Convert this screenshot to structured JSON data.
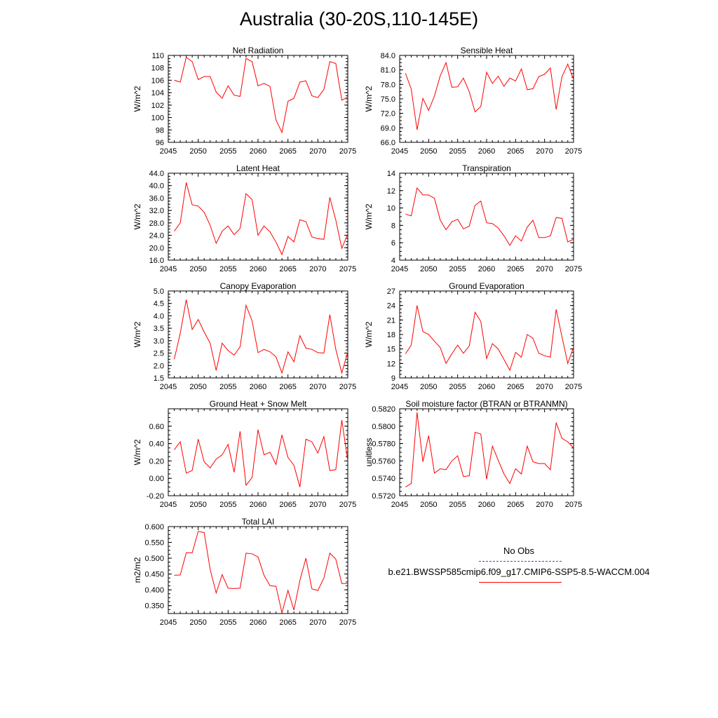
{
  "title": "Australia (30-20S,110-145E)",
  "colors": {
    "model": "#ff0000",
    "obs": "#4b4bb4",
    "frame": "#000000"
  },
  "legend": [
    {
      "label": "No Obs",
      "style": "dashed",
      "color": "#4b4bb4"
    },
    {
      "label": "b.e21.BWSSP585cmip6.f09_g17.CMIP6-SSP5-8.5-WACCM.004",
      "style": "solid",
      "color": "#ff0000"
    }
  ],
  "chart_data": [
    {
      "type": "line",
      "title": "Net Radiation",
      "ylabel": "W/m^2",
      "xlim": [
        2045,
        2075
      ],
      "ylim": [
        96,
        110
      ],
      "xticks": [
        2045,
        2050,
        2055,
        2060,
        2065,
        2070,
        2075
      ],
      "yticks": [
        "96",
        "98",
        "100",
        "102",
        "104",
        "106",
        "108",
        "110"
      ],
      "x": [
        2046,
        2047,
        2048,
        2049,
        2050,
        2051,
        2052,
        2053,
        2054,
        2055,
        2056,
        2057,
        2058,
        2059,
        2060,
        2061,
        2062,
        2063,
        2064,
        2065,
        2066,
        2067,
        2068,
        2069,
        2070,
        2071,
        2072,
        2073,
        2074,
        2075
      ],
      "series": [
        {
          "values": [
            106.0,
            105.7,
            109.7,
            109.0,
            106.1,
            106.6,
            106.6,
            104.1,
            103.1,
            105.1,
            103.6,
            103.4,
            109.5,
            109.0,
            105.1,
            105.5,
            105.0,
            99.6,
            97.6,
            102.6,
            103.1,
            105.7,
            105.9,
            103.5,
            103.2,
            104.5,
            109.0,
            108.7,
            102.8,
            103.3
          ]
        }
      ]
    },
    {
      "type": "line",
      "title": "Sensible Heat",
      "ylabel": "W/m^2",
      "xlim": [
        2045,
        2075
      ],
      "ylim": [
        66,
        84
      ],
      "xticks": [
        2045,
        2050,
        2055,
        2060,
        2065,
        2070,
        2075
      ],
      "yticks": [
        "66.0",
        "69.0",
        "72.0",
        "75.0",
        "78.0",
        "81.0",
        "84.0"
      ],
      "x": [
        2046,
        2047,
        2048,
        2049,
        2050,
        2051,
        2052,
        2053,
        2054,
        2055,
        2056,
        2057,
        2058,
        2059,
        2060,
        2061,
        2062,
        2063,
        2064,
        2065,
        2066,
        2067,
        2068,
        2069,
        2070,
        2071,
        2072,
        2073,
        2074,
        2075
      ],
      "series": [
        {
          "values": [
            80.3,
            77.0,
            68.6,
            75.1,
            72.6,
            75.6,
            79.8,
            82.5,
            77.4,
            77.5,
            79.3,
            76.5,
            72.3,
            73.4,
            80.5,
            78.2,
            79.7,
            77.6,
            79.3,
            78.7,
            81.2,
            76.9,
            77.1,
            79.6,
            80.1,
            81.4,
            72.8,
            79.6,
            82.2,
            79.0
          ]
        }
      ]
    },
    {
      "type": "line",
      "title": "Latent Heat",
      "ylabel": "W/m^2",
      "xlim": [
        2045,
        2075
      ],
      "ylim": [
        16,
        44
      ],
      "xticks": [
        2045,
        2050,
        2055,
        2060,
        2065,
        2070,
        2075
      ],
      "yticks": [
        "16.0",
        "20.0",
        "24.0",
        "28.0",
        "32.0",
        "36.0",
        "40.0",
        "44.0"
      ],
      "x": [
        2046,
        2047,
        2048,
        2049,
        2050,
        2051,
        2052,
        2053,
        2054,
        2055,
        2056,
        2057,
        2058,
        2059,
        2060,
        2061,
        2062,
        2063,
        2064,
        2065,
        2066,
        2067,
        2068,
        2069,
        2070,
        2071,
        2072,
        2073,
        2074,
        2075
      ],
      "series": [
        {
          "values": [
            25.3,
            28.0,
            41.0,
            33.8,
            33.4,
            31.4,
            27.2,
            21.4,
            25.3,
            27.0,
            24.2,
            26.2,
            37.4,
            35.5,
            24.0,
            27.0,
            25.1,
            21.8,
            17.8,
            23.6,
            21.9,
            29.0,
            28.4,
            23.5,
            22.9,
            22.7,
            36.2,
            28.9,
            19.8,
            24.5
          ]
        }
      ]
    },
    {
      "type": "line",
      "title": "Transpiration",
      "ylabel": "W/m^2",
      "xlim": [
        2045,
        2075
      ],
      "ylim": [
        4,
        14
      ],
      "xticks": [
        2045,
        2050,
        2055,
        2060,
        2065,
        2070,
        2075
      ],
      "yticks": [
        "4",
        "6",
        "8",
        "10",
        "12",
        "14"
      ],
      "x": [
        2046,
        2047,
        2048,
        2049,
        2050,
        2051,
        2052,
        2053,
        2054,
        2055,
        2056,
        2057,
        2058,
        2059,
        2060,
        2061,
        2062,
        2063,
        2064,
        2065,
        2066,
        2067,
        2068,
        2069,
        2070,
        2071,
        2072,
        2073,
        2074,
        2075
      ],
      "series": [
        {
          "values": [
            9.3,
            9.1,
            12.3,
            11.5,
            11.5,
            11.1,
            8.6,
            7.5,
            8.4,
            8.7,
            7.6,
            7.9,
            10.3,
            10.8,
            8.3,
            8.2,
            7.7,
            6.8,
            5.7,
            6.8,
            6.2,
            7.8,
            8.6,
            6.6,
            6.6,
            6.8,
            8.9,
            8.8,
            6.1,
            6.4
          ]
        }
      ]
    },
    {
      "type": "line",
      "title": "Canopy Evaporation",
      "ylabel": "W/m^2",
      "xlim": [
        2045,
        2075
      ],
      "ylim": [
        1.5,
        5.0
      ],
      "xticks": [
        2045,
        2050,
        2055,
        2060,
        2065,
        2070,
        2075
      ],
      "yticks": [
        "1.5",
        "2.0",
        "2.5",
        "3.0",
        "3.5",
        "4.0",
        "4.5",
        "5.0"
      ],
      "x": [
        2046,
        2047,
        2048,
        2049,
        2050,
        2051,
        2052,
        2053,
        2054,
        2055,
        2056,
        2057,
        2058,
        2059,
        2060,
        2061,
        2062,
        2063,
        2064,
        2065,
        2066,
        2067,
        2068,
        2069,
        2070,
        2071,
        2072,
        2073,
        2074,
        2075
      ],
      "series": [
        {
          "values": [
            2.25,
            3.3,
            4.65,
            3.45,
            3.85,
            3.35,
            2.9,
            1.8,
            2.9,
            2.6,
            2.42,
            2.75,
            4.42,
            3.8,
            2.52,
            2.65,
            2.55,
            2.35,
            1.7,
            2.55,
            2.15,
            3.2,
            2.7,
            2.65,
            2.52,
            2.5,
            4.05,
            2.65,
            1.7,
            2.55
          ]
        }
      ]
    },
    {
      "type": "line",
      "title": "Ground Evaporation",
      "ylabel": "W/m^2",
      "xlim": [
        2045,
        2075
      ],
      "ylim": [
        9,
        27
      ],
      "xticks": [
        2045,
        2050,
        2055,
        2060,
        2065,
        2070,
        2075
      ],
      "yticks": [
        "9",
        "12",
        "15",
        "18",
        "21",
        "24",
        "27"
      ],
      "x": [
        2046,
        2047,
        2048,
        2049,
        2050,
        2051,
        2052,
        2053,
        2054,
        2055,
        2056,
        2057,
        2058,
        2059,
        2060,
        2061,
        2062,
        2063,
        2064,
        2065,
        2066,
        2067,
        2068,
        2069,
        2070,
        2071,
        2072,
        2073,
        2074,
        2075
      ],
      "series": [
        {
          "values": [
            14.0,
            15.8,
            24.0,
            18.6,
            18.0,
            16.6,
            15.3,
            12.0,
            14.0,
            15.8,
            14.1,
            15.6,
            22.6,
            20.7,
            13.0,
            16.1,
            15.0,
            12.8,
            10.6,
            14.3,
            13.3,
            18.0,
            17.2,
            14.1,
            13.6,
            13.3,
            23.2,
            17.5,
            12.0,
            15.4
          ]
        }
      ]
    },
    {
      "type": "line",
      "title": "Ground Heat + Snow Melt",
      "ylabel": "W/m^2",
      "xlim": [
        2045,
        2075
      ],
      "ylim": [
        -0.2,
        0.8
      ],
      "xticks": [
        2045,
        2050,
        2055,
        2060,
        2065,
        2070,
        2075
      ],
      "yticks": [
        "-0.20",
        "0.00",
        "0.20",
        "0.40",
        "0.60"
      ],
      "x": [
        2046,
        2047,
        2048,
        2049,
        2050,
        2051,
        2052,
        2053,
        2054,
        2055,
        2056,
        2057,
        2058,
        2059,
        2060,
        2061,
        2062,
        2063,
        2064,
        2065,
        2066,
        2067,
        2068,
        2069,
        2070,
        2071,
        2072,
        2073,
        2074,
        2075
      ],
      "series": [
        {
          "values": [
            0.33,
            0.42,
            0.06,
            0.09,
            0.45,
            0.19,
            0.12,
            0.22,
            0.27,
            0.39,
            0.07,
            0.54,
            -0.08,
            0.01,
            0.56,
            0.27,
            0.3,
            0.16,
            0.5,
            0.24,
            0.15,
            -0.1,
            0.45,
            0.42,
            0.29,
            0.48,
            0.09,
            0.1,
            0.67,
            0.2
          ]
        }
      ]
    },
    {
      "type": "line",
      "title": "Soil moisture factor (BTRAN or BTRANMN)",
      "ylabel": "unitless",
      "xlim": [
        2045,
        2075
      ],
      "ylim": [
        0.572,
        0.582
      ],
      "xticks": [
        2045,
        2050,
        2055,
        2060,
        2065,
        2070,
        2075
      ],
      "yticks": [
        "0.5720",
        "0.5740",
        "0.5760",
        "0.5780",
        "0.5800",
        "0.5820"
      ],
      "x": [
        2046,
        2047,
        2048,
        2049,
        2050,
        2051,
        2052,
        2053,
        2054,
        2055,
        2056,
        2057,
        2058,
        2059,
        2060,
        2061,
        2062,
        2063,
        2064,
        2065,
        2066,
        2067,
        2068,
        2069,
        2070,
        2071,
        2072,
        2073,
        2074,
        2075
      ],
      "series": [
        {
          "values": [
            0.573,
            0.5734,
            0.5816,
            0.5759,
            0.5789,
            0.5746,
            0.5751,
            0.575,
            0.576,
            0.5766,
            0.5742,
            0.5743,
            0.5793,
            0.5791,
            0.5739,
            0.5777,
            0.5761,
            0.5745,
            0.5734,
            0.5751,
            0.5745,
            0.5777,
            0.5759,
            0.5757,
            0.5757,
            0.575,
            0.5804,
            0.5786,
            0.5782,
            0.5775
          ]
        }
      ]
    },
    {
      "type": "line",
      "title": "Total LAI",
      "ylabel": "m2/m2",
      "xlim": [
        2045,
        2075
      ],
      "ylim": [
        0.325,
        0.6
      ],
      "xticks": [
        2045,
        2050,
        2055,
        2060,
        2065,
        2070,
        2075
      ],
      "yticks": [
        "0.350",
        "0.400",
        "0.450",
        "0.500",
        "0.550",
        "0.600"
      ],
      "x": [
        2046,
        2047,
        2048,
        2049,
        2050,
        2051,
        2052,
        2053,
        2054,
        2055,
        2056,
        2057,
        2058,
        2059,
        2060,
        2061,
        2062,
        2063,
        2064,
        2065,
        2066,
        2067,
        2068,
        2069,
        2070,
        2071,
        2072,
        2073,
        2074,
        2075
      ],
      "series": [
        {
          "values": [
            0.446,
            0.447,
            0.517,
            0.517,
            0.585,
            0.581,
            0.465,
            0.39,
            0.448,
            0.405,
            0.404,
            0.405,
            0.516,
            0.514,
            0.504,
            0.446,
            0.413,
            0.411,
            0.327,
            0.398,
            0.336,
            0.43,
            0.5,
            0.403,
            0.398,
            0.437,
            0.516,
            0.497,
            0.42,
            0.42
          ]
        }
      ]
    }
  ]
}
